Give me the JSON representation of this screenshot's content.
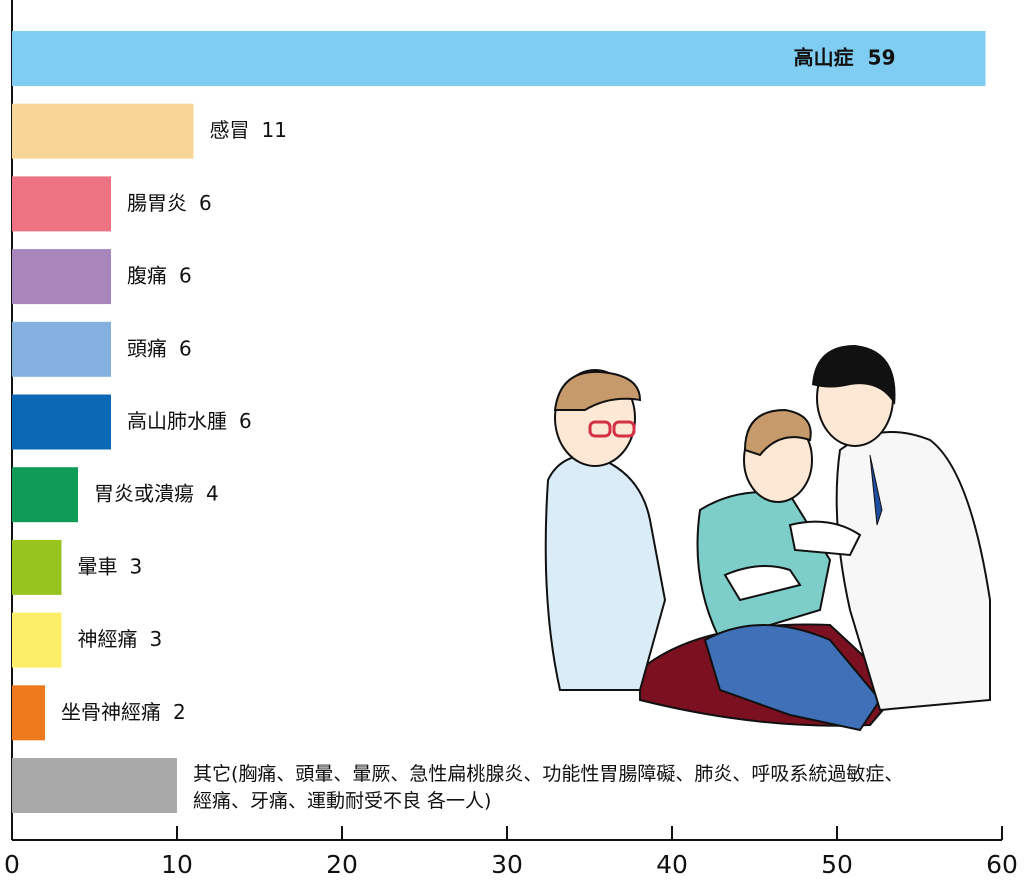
{
  "chart_data": {
    "type": "bar",
    "orientation": "horizontal",
    "categories": [
      "高山症",
      "感冒",
      "腸胃炎",
      "腹痛",
      "頭痛",
      "高山肺水腫",
      "胃炎或潰瘍",
      "暈車",
      "神經痛",
      "坐骨神經痛",
      "其它(胸痛、頭暈、暈厥、急性扁桃腺炎、功能性胃腸障礙、肺炎、呼吸系統過敏症、經痛、牙痛、運動耐受不良 各一人)"
    ],
    "values": [
      59,
      11,
      6,
      6,
      6,
      6,
      4,
      3,
      3,
      2,
      10
    ],
    "colors": [
      "#7fcdf2",
      "#f7d597",
      "#ee7382",
      "#a886bb",
      "#84b0e0",
      "#0a68b4",
      "#109b57",
      "#98c41f",
      "#fdee6a",
      "#ef7a1e",
      "#a9a9a9"
    ],
    "xlim": [
      0,
      60
    ],
    "xticks": [
      0,
      10,
      20,
      30,
      40,
      50,
      60
    ]
  }
}
